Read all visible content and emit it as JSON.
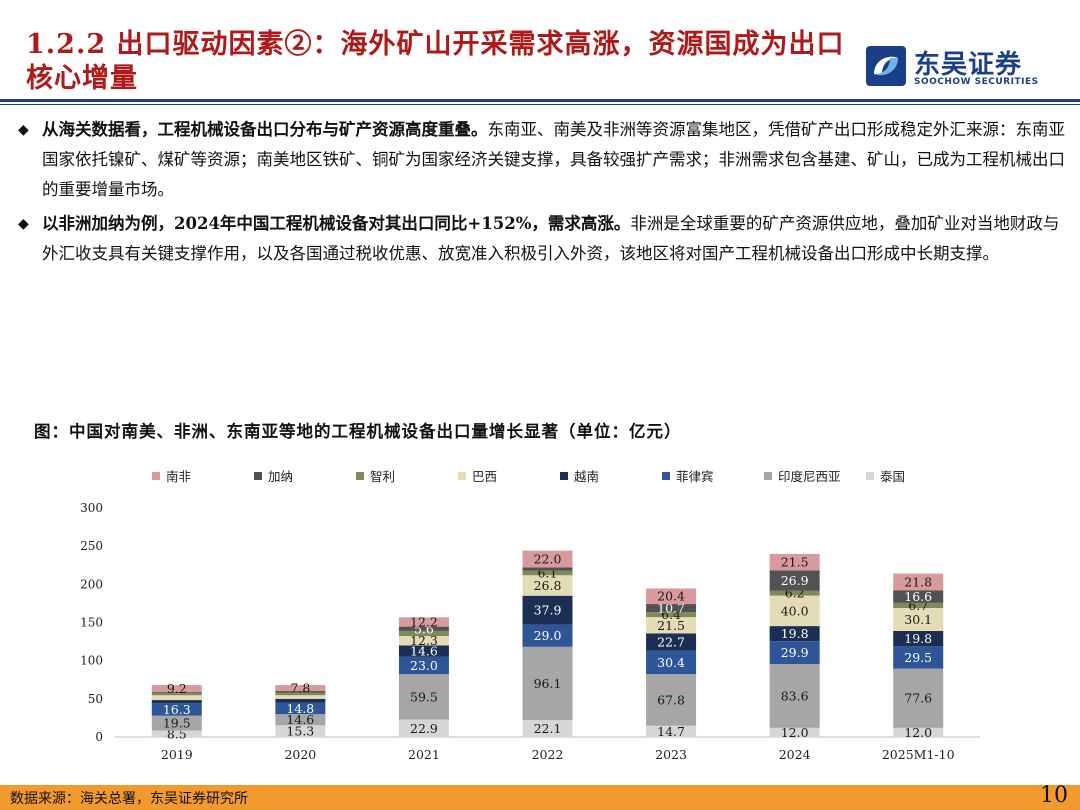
{
  "header": {
    "title": "1.2.2 出口驱动因素②：海外矿山开采需求高涨，资源国成为出口核心增量",
    "logo_cn": "东吴证券",
    "logo_en": "SOOCHOW SECURITIES"
  },
  "bullets": [
    {
      "bold": "从海关数据看，工程机械设备出口分布与矿产资源高度重叠。",
      "text": "东南亚、南美及非洲等资源富集地区，凭借矿产出口形成稳定外汇来源：东南亚国家依托镍矿、煤矿等资源；南美地区铁矿、铜矿为国家经济关键支撑，具备较强扩产需求；非洲需求包含基建、矿山，已成为工程机械出口的重要增量市场。"
    },
    {
      "bold": "以非洲加纳为例，2024年中国工程机械设备对其出口同比+152%，需求高涨。",
      "text": "非洲是全球重要的矿产资源供应地，叠加矿业对当地财政与外汇收支具有关键支撑作用，以及各国通过税收优惠、放宽准入积极引入外资，该地区将对国产工程机械设备出口形成中长期支撑。"
    }
  ],
  "bullet_symbol": "◆",
  "chart_title": "图：中国对南美、非洲、东南亚等地的工程机械设备出口量增长显著（单位：亿元）",
  "chart_data": {
    "type": "bar",
    "stacked": true,
    "categories": [
      "2019",
      "2020",
      "2021",
      "2022",
      "2023",
      "2024",
      "2025M1-10"
    ],
    "ylim": [
      0,
      300
    ],
    "yticks": [
      0,
      50,
      100,
      150,
      200,
      250,
      300
    ],
    "grid": false,
    "legend_position": "top",
    "legend_order": [
      "南非",
      "加纳",
      "智利",
      "巴西",
      "越南",
      "菲律宾",
      "印度尼西亚",
      "泰国"
    ],
    "series": [
      {
        "name": "泰国",
        "color": "#d6d6d6",
        "values": [
          8.5,
          15.3,
          22.9,
          22.1,
          14.7,
          12.0,
          12.0
        ]
      },
      {
        "name": "印度尼西亚",
        "color": "#a6a6a6",
        "values": [
          19.5,
          14.6,
          59.5,
          96.1,
          67.8,
          83.6,
          77.6
        ]
      },
      {
        "name": "菲律宾",
        "color": "#2e5597",
        "values": [
          16.3,
          14.8,
          23.0,
          29.0,
          30.4,
          29.9,
          29.5
        ]
      },
      {
        "name": "越南",
        "color": "#1b2f55",
        "values": [
          4.1,
          5.3,
          14.6,
          37.9,
          22.7,
          19.8,
          19.8
        ]
      },
      {
        "name": "巴西",
        "color": "#e3dcb4",
        "values": [
          6.3,
          4.8,
          12.3,
          26.8,
          21.5,
          40.0,
          30.1
        ]
      },
      {
        "name": "智利",
        "color": "#7e8a5a",
        "values": [
          2.6,
          3.4,
          6.7,
          6.1,
          6.4,
          6.2,
          6.7
        ]
      },
      {
        "name": "加纳",
        "color": "#525252",
        "values": [
          1.5,
          2.0,
          5.6,
          4.2,
          10.7,
          26.9,
          16.6
        ]
      },
      {
        "name": "南非",
        "color": "#d99a9e",
        "values": [
          9.2,
          7.8,
          12.2,
          22.0,
          20.4,
          21.5,
          21.8
        ]
      }
    ],
    "labels": {
      "泰国": [
        "8.5",
        "15.3",
        "22.9",
        "22.1",
        "14.7",
        "12.0",
        "12.0"
      ],
      "印度尼西亚": [
        "19.5",
        "14.6",
        "59.5",
        "96.1",
        "67.8",
        "83.6",
        "77.6"
      ],
      "菲律宾": [
        "16.3",
        "14.8",
        "23.0",
        "29.0",
        "30.4",
        "29.9",
        "29.5"
      ],
      "越南": [
        "",
        "",
        "14.6",
        "37.9",
        "22.7",
        "19.8",
        "19.8"
      ],
      "巴西": [
        "",
        "",
        "12.3",
        "26.8",
        "21.5",
        "40.0",
        "30.1"
      ],
      "智利": [
        "",
        "",
        "",
        "6.1",
        "6.4",
        "6.2",
        "6.7"
      ],
      "加纳": [
        "",
        "",
        "5.6",
        "",
        "10.7",
        "26.9",
        "16.6"
      ],
      "南非": [
        "9.2",
        "7.8",
        "12.2",
        "22.0",
        "20.4",
        "21.5",
        "21.8"
      ]
    }
  },
  "footer": {
    "source": "数据来源：海关总署，东吴证券研究所",
    "page": "10"
  }
}
